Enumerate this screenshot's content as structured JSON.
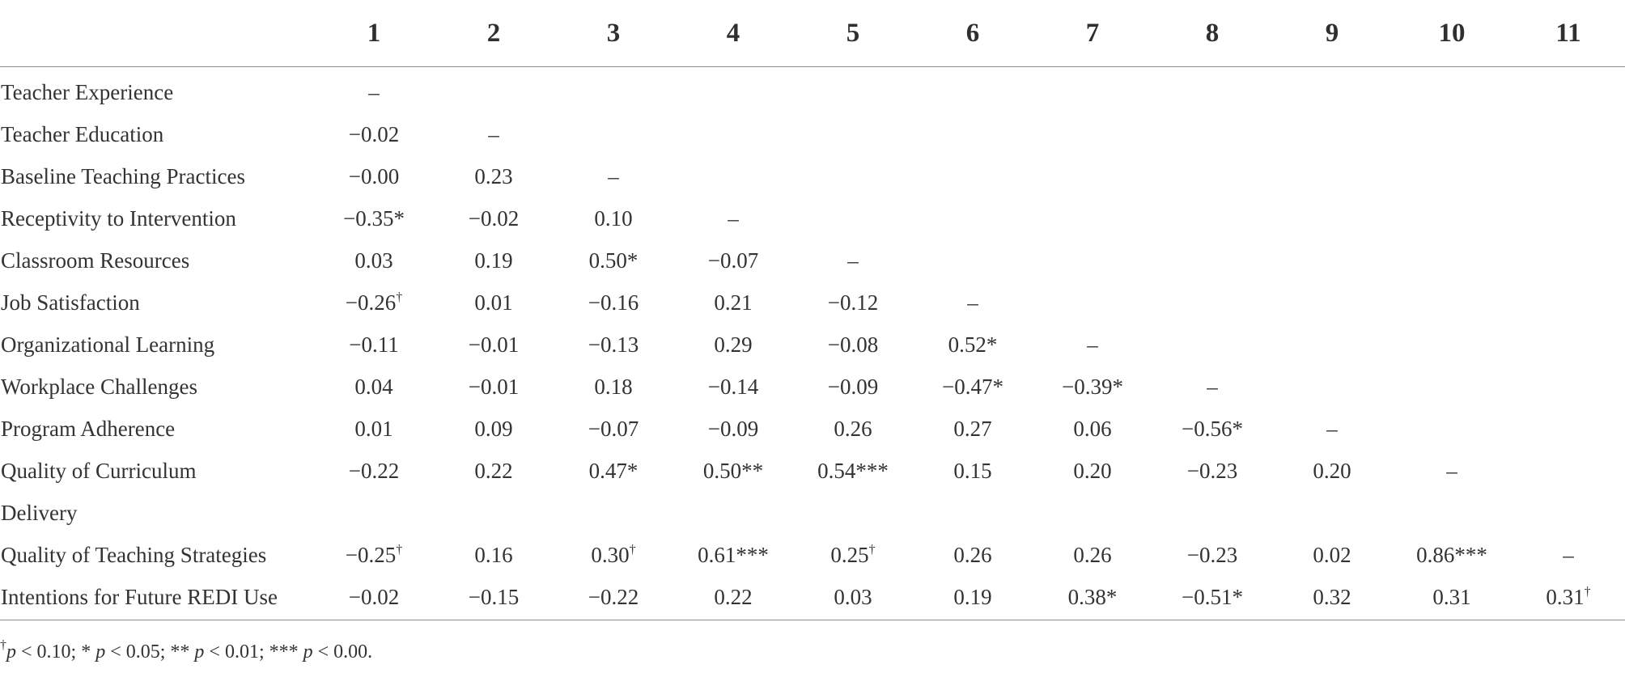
{
  "table": {
    "columns": [
      "1",
      "2",
      "3",
      "4",
      "5",
      "6",
      "7",
      "8",
      "9",
      "10",
      "11"
    ],
    "rows": [
      {
        "label": "Teacher Experience",
        "cells": [
          {
            "v": "–",
            "s": ""
          },
          {
            "v": "",
            "s": ""
          },
          {
            "v": "",
            "s": ""
          },
          {
            "v": "",
            "s": ""
          },
          {
            "v": "",
            "s": ""
          },
          {
            "v": "",
            "s": ""
          },
          {
            "v": "",
            "s": ""
          },
          {
            "v": "",
            "s": ""
          },
          {
            "v": "",
            "s": ""
          },
          {
            "v": "",
            "s": ""
          },
          {
            "v": "",
            "s": ""
          }
        ]
      },
      {
        "label": "Teacher Education",
        "cells": [
          {
            "v": "−0.02",
            "s": ""
          },
          {
            "v": "–",
            "s": ""
          },
          {
            "v": "",
            "s": ""
          },
          {
            "v": "",
            "s": ""
          },
          {
            "v": "",
            "s": ""
          },
          {
            "v": "",
            "s": ""
          },
          {
            "v": "",
            "s": ""
          },
          {
            "v": "",
            "s": ""
          },
          {
            "v": "",
            "s": ""
          },
          {
            "v": "",
            "s": ""
          },
          {
            "v": "",
            "s": ""
          }
        ]
      },
      {
        "label": "Baseline Teaching Practices",
        "cells": [
          {
            "v": "−0.00",
            "s": ""
          },
          {
            "v": "0.23",
            "s": ""
          },
          {
            "v": "–",
            "s": ""
          },
          {
            "v": "",
            "s": ""
          },
          {
            "v": "",
            "s": ""
          },
          {
            "v": "",
            "s": ""
          },
          {
            "v": "",
            "s": ""
          },
          {
            "v": "",
            "s": ""
          },
          {
            "v": "",
            "s": ""
          },
          {
            "v": "",
            "s": ""
          },
          {
            "v": "",
            "s": ""
          }
        ]
      },
      {
        "label": "Receptivity to Intervention",
        "cells": [
          {
            "v": "−0.35*",
            "s": ""
          },
          {
            "v": "−0.02",
            "s": ""
          },
          {
            "v": "0.10",
            "s": ""
          },
          {
            "v": "–",
            "s": ""
          },
          {
            "v": "",
            "s": ""
          },
          {
            "v": "",
            "s": ""
          },
          {
            "v": "",
            "s": ""
          },
          {
            "v": "",
            "s": ""
          },
          {
            "v": "",
            "s": ""
          },
          {
            "v": "",
            "s": ""
          },
          {
            "v": "",
            "s": ""
          }
        ]
      },
      {
        "label": "Classroom Resources",
        "cells": [
          {
            "v": "0.03",
            "s": ""
          },
          {
            "v": "0.19",
            "s": ""
          },
          {
            "v": "0.50*",
            "s": ""
          },
          {
            "v": "−0.07",
            "s": ""
          },
          {
            "v": "–",
            "s": ""
          },
          {
            "v": "",
            "s": ""
          },
          {
            "v": "",
            "s": ""
          },
          {
            "v": "",
            "s": ""
          },
          {
            "v": "",
            "s": ""
          },
          {
            "v": "",
            "s": ""
          },
          {
            "v": "",
            "s": ""
          }
        ]
      },
      {
        "label": "Job Satisfaction",
        "cells": [
          {
            "v": "−0.26",
            "s": "†"
          },
          {
            "v": "0.01",
            "s": ""
          },
          {
            "v": "−0.16",
            "s": ""
          },
          {
            "v": "0.21",
            "s": ""
          },
          {
            "v": "−0.12",
            "s": ""
          },
          {
            "v": "–",
            "s": ""
          },
          {
            "v": "",
            "s": ""
          },
          {
            "v": "",
            "s": ""
          },
          {
            "v": "",
            "s": ""
          },
          {
            "v": "",
            "s": ""
          },
          {
            "v": "",
            "s": ""
          }
        ]
      },
      {
        "label": "Organizational Learning",
        "cells": [
          {
            "v": "−0.11",
            "s": ""
          },
          {
            "v": "−0.01",
            "s": ""
          },
          {
            "v": "−0.13",
            "s": ""
          },
          {
            "v": "0.29",
            "s": ""
          },
          {
            "v": "−0.08",
            "s": ""
          },
          {
            "v": "0.52*",
            "s": ""
          },
          {
            "v": "–",
            "s": ""
          },
          {
            "v": "",
            "s": ""
          },
          {
            "v": "",
            "s": ""
          },
          {
            "v": "",
            "s": ""
          },
          {
            "v": "",
            "s": ""
          }
        ]
      },
      {
        "label": "Workplace Challenges",
        "cells": [
          {
            "v": "0.04",
            "s": ""
          },
          {
            "v": "−0.01",
            "s": ""
          },
          {
            "v": "0.18",
            "s": ""
          },
          {
            "v": "−0.14",
            "s": ""
          },
          {
            "v": "−0.09",
            "s": ""
          },
          {
            "v": "−0.47*",
            "s": ""
          },
          {
            "v": "−0.39*",
            "s": ""
          },
          {
            "v": "–",
            "s": ""
          },
          {
            "v": "",
            "s": ""
          },
          {
            "v": "",
            "s": ""
          },
          {
            "v": "",
            "s": ""
          }
        ]
      },
      {
        "label": "Program Adherence",
        "cells": [
          {
            "v": "0.01",
            "s": ""
          },
          {
            "v": "0.09",
            "s": ""
          },
          {
            "v": "−0.07",
            "s": ""
          },
          {
            "v": "−0.09",
            "s": ""
          },
          {
            "v": "0.26",
            "s": ""
          },
          {
            "v": "0.27",
            "s": ""
          },
          {
            "v": "0.06",
            "s": ""
          },
          {
            "v": "−0.56*",
            "s": ""
          },
          {
            "v": "–",
            "s": ""
          },
          {
            "v": "",
            "s": ""
          },
          {
            "v": "",
            "s": ""
          }
        ]
      },
      {
        "label": "Quality of Curriculum",
        "cells": [
          {
            "v": "−0.22",
            "s": ""
          },
          {
            "v": "0.22",
            "s": ""
          },
          {
            "v": "0.47*",
            "s": ""
          },
          {
            "v": "0.50**",
            "s": ""
          },
          {
            "v": "0.54***",
            "s": ""
          },
          {
            "v": "0.15",
            "s": ""
          },
          {
            "v": "0.20",
            "s": ""
          },
          {
            "v": "−0.23",
            "s": ""
          },
          {
            "v": "0.20",
            "s": ""
          },
          {
            "v": "–",
            "s": ""
          },
          {
            "v": "",
            "s": ""
          }
        ]
      },
      {
        "label": "Delivery",
        "cells": [
          {
            "v": "",
            "s": ""
          },
          {
            "v": "",
            "s": ""
          },
          {
            "v": "",
            "s": ""
          },
          {
            "v": "",
            "s": ""
          },
          {
            "v": "",
            "s": ""
          },
          {
            "v": "",
            "s": ""
          },
          {
            "v": "",
            "s": ""
          },
          {
            "v": "",
            "s": ""
          },
          {
            "v": "",
            "s": ""
          },
          {
            "v": "",
            "s": ""
          },
          {
            "v": "",
            "s": ""
          }
        ]
      },
      {
        "label": "Quality of Teaching Strategies",
        "cells": [
          {
            "v": "−0.25",
            "s": "†"
          },
          {
            "v": "0.16",
            "s": ""
          },
          {
            "v": "0.30",
            "s": "†"
          },
          {
            "v": "0.61***",
            "s": ""
          },
          {
            "v": "0.25",
            "s": "†"
          },
          {
            "v": "0.26",
            "s": ""
          },
          {
            "v": "0.26",
            "s": ""
          },
          {
            "v": "−0.23",
            "s": ""
          },
          {
            "v": "0.02",
            "s": ""
          },
          {
            "v": "0.86***",
            "s": ""
          },
          {
            "v": "–",
            "s": ""
          }
        ]
      },
      {
        "label": "Intentions for Future REDI Use",
        "cells": [
          {
            "v": "−0.02",
            "s": ""
          },
          {
            "v": "−0.15",
            "s": ""
          },
          {
            "v": "−0.22",
            "s": ""
          },
          {
            "v": "0.22",
            "s": ""
          },
          {
            "v": "0.03",
            "s": ""
          },
          {
            "v": "0.19",
            "s": ""
          },
          {
            "v": "0.38*",
            "s": ""
          },
          {
            "v": "−0.51*",
            "s": ""
          },
          {
            "v": "0.32",
            "s": ""
          },
          {
            "v": "0.31",
            "s": ""
          },
          {
            "v": "0.31",
            "s": "†"
          }
        ]
      }
    ]
  },
  "footnote": {
    "dagger": "†",
    "p1": "p",
    "t1": " < 0.10; * ",
    "p2": "p",
    "t2": " < 0.05; ** ",
    "p3": "p",
    "t3": " < 0.01; *** ",
    "p4": "p",
    "t4": " < 0.00."
  }
}
